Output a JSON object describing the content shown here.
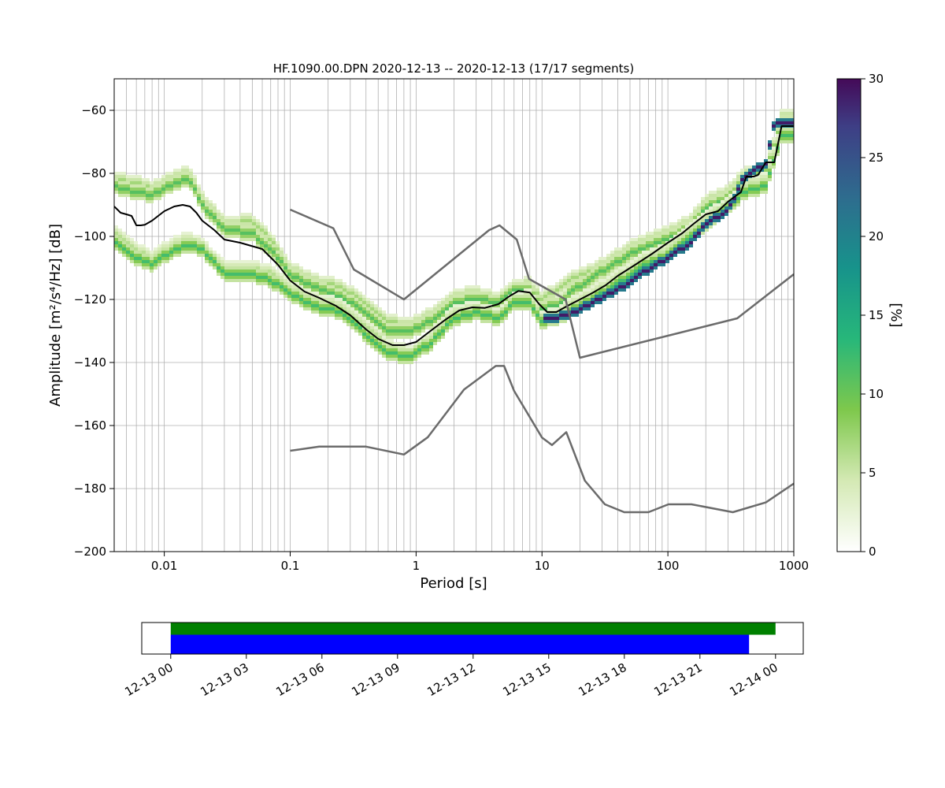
{
  "chart_data": [
    {
      "type": "heatmap",
      "title": "HF.1090.00.DPN   2020-12-13 -- 2020-12-13  (17/17 segments)",
      "xlabel": "Period [s]",
      "ylabel": "Amplitude [m²/s⁴/Hz] [dB]",
      "x_scale": "log",
      "xlim": [
        0.004,
        1000
      ],
      "ylim": [
        -200,
        -50
      ],
      "x_ticks": [
        0.01,
        0.1,
        1,
        10,
        100,
        1000
      ],
      "x_tick_labels": [
        "0.01",
        "0.1",
        "1",
        "10",
        "100",
        "1000"
      ],
      "y_ticks": [
        -60,
        -80,
        -100,
        -120,
        -140,
        -160,
        -180,
        -200
      ],
      "y_tick_labels": [
        "−60",
        "−80",
        "−100",
        "−120",
        "−140",
        "−160",
        "−180",
        "−200"
      ],
      "grid": true,
      "colorbar": {
        "label": "[%]",
        "range": [
          0,
          30
        ],
        "ticks": [
          0,
          5,
          10,
          15,
          20,
          25,
          30
        ],
        "tick_labels": [
          "0",
          "5",
          "10",
          "15",
          "20",
          "25",
          "30"
        ],
        "colormap_stops": [
          {
            "v": 0,
            "color": "#ffffff"
          },
          {
            "v": 0.15,
            "color": "#d4e9b4"
          },
          {
            "v": 0.3,
            "color": "#7ec84c"
          },
          {
            "v": 0.45,
            "color": "#27b77a"
          },
          {
            "v": 0.6,
            "color": "#17938b"
          },
          {
            "v": 0.75,
            "color": "#2e6c8e"
          },
          {
            "v": 0.9,
            "color": "#3e3e85"
          },
          {
            "v": 1.0,
            "color": "#440a58"
          }
        ]
      },
      "heatmap_bands": [
        {
          "name": "band-upper-a",
          "periods": [
            0.004,
            0.006,
            0.008,
            0.012,
            0.016,
            0.02,
            0.03,
            0.05,
            0.07,
            0.1,
            0.15,
            0.25,
            0.4,
            0.6,
            0.9,
            1.3,
            2,
            3,
            4.5,
            6,
            8,
            10,
            13,
            18,
            25,
            40,
            60,
            100,
            150,
            200,
            300,
            400,
            600,
            800,
            1000
          ],
          "db": [
            -82,
            -83,
            -85,
            -81,
            -80,
            -88,
            -96,
            -95,
            -101,
            -110,
            -114,
            -116,
            -121,
            -127,
            -128,
            -125,
            -119,
            -118,
            -120,
            -116,
            -115,
            -120,
            -117,
            -113,
            -111,
            -106,
            -102,
            -99,
            -95,
            -89,
            -86,
            -80,
            -79,
            -62,
            -62
          ],
          "pct": 7
        },
        {
          "name": "band-upper-b",
          "periods": [
            0.004,
            0.006,
            0.008,
            0.012,
            0.016,
            0.02,
            0.03,
            0.05,
            0.07,
            0.1,
            0.15,
            0.25,
            0.4,
            0.6,
            0.9,
            1.3,
            2,
            3,
            4.5,
            6,
            8,
            10,
            13,
            18,
            25,
            40,
            60,
            100,
            150,
            200,
            300,
            400,
            600,
            800,
            1000
          ],
          "db": [
            -84,
            -86,
            -87,
            -83,
            -82,
            -90,
            -98,
            -99,
            -104,
            -112,
            -116,
            -119,
            -124,
            -130,
            -130,
            -127,
            -121,
            -120,
            -121,
            -117,
            -117,
            -123,
            -122,
            -117,
            -113,
            -108,
            -104,
            -101,
            -97,
            -91,
            -88,
            -82,
            -80,
            -64,
            -64
          ],
          "pct": 11
        },
        {
          "name": "band-lower-a",
          "periods": [
            0.004,
            0.006,
            0.008,
            0.012,
            0.016,
            0.02,
            0.03,
            0.05,
            0.07,
            0.1,
            0.15,
            0.25,
            0.4,
            0.6,
            0.9,
            1.3,
            2,
            3,
            4.5,
            6,
            8,
            10,
            13,
            18,
            25,
            40,
            60,
            100,
            150,
            200,
            300,
            400,
            600,
            800,
            1000
          ],
          "db": [
            -98,
            -104,
            -107,
            -102,
            -101,
            -103,
            -110,
            -110,
            -111,
            -116,
            -120,
            -122,
            -128,
            -135,
            -137,
            -132,
            -124,
            -123,
            -125,
            -120,
            -119,
            -126,
            -125,
            -121,
            -118,
            -113,
            -108,
            -104,
            -98,
            -94,
            -90,
            -84,
            -82,
            -66,
            -66
          ],
          "pct": 6
        },
        {
          "name": "band-lower-b",
          "periods": [
            0.004,
            0.006,
            0.008,
            0.012,
            0.016,
            0.02,
            0.03,
            0.05,
            0.07,
            0.1,
            0.15,
            0.25,
            0.4,
            0.6,
            0.9,
            1.3,
            2,
            3,
            4.5,
            6,
            8,
            10,
            13,
            18,
            25,
            40,
            60,
            100,
            150,
            200,
            300,
            400,
            600,
            800,
            1000
          ],
          "db": [
            -101,
            -107,
            -109,
            -104,
            -103,
            -104,
            -112,
            -112,
            -114,
            -118,
            -122,
            -124,
            -131,
            -137,
            -138,
            -134,
            -126,
            -124,
            -126,
            -121,
            -121,
            -127,
            -126,
            -123,
            -120,
            -115,
            -110,
            -106,
            -100,
            -96,
            -91,
            -86,
            -84,
            -68,
            -68
          ],
          "pct": 12
        },
        {
          "name": "band-dark",
          "periods": [
            10,
            13,
            18,
            25,
            40,
            60,
            100,
            150,
            200,
            300,
            400,
            600,
            700,
            1000
          ],
          "db": [
            -126,
            -126,
            -124,
            -121,
            -117,
            -112,
            -107,
            -102,
            -96,
            -92,
            -81,
            -77,
            -64,
            -64
          ],
          "pct": 29
        }
      ],
      "series": [
        {
          "name": "mean",
          "color": "#000000",
          "x": [
            0.004,
            0.0045,
            0.005,
            0.0055,
            0.006,
            0.0065,
            0.007,
            0.008,
            0.01,
            0.012,
            0.014,
            0.016,
            0.018,
            0.02,
            0.025,
            0.03,
            0.04,
            0.06,
            0.08,
            0.1,
            0.13,
            0.17,
            0.23,
            0.3,
            0.4,
            0.5,
            0.65,
            0.8,
            1.0,
            1.3,
            1.7,
            2.2,
            2.8,
            3.5,
            4.5,
            5.5,
            6.5,
            8,
            9.5,
            11,
            13,
            16,
            20,
            25,
            32,
            40,
            55,
            75,
            100,
            130,
            160,
            200,
            250,
            300,
            350,
            380,
            420,
            480,
            520,
            600,
            650,
            700,
            800,
            1000
          ],
          "y": [
            -90.5,
            -92.5,
            -93,
            -93.5,
            -96.5,
            -96.5,
            -96.3,
            -95,
            -92,
            -90.5,
            -90,
            -90.5,
            -92.5,
            -95,
            -98,
            -101,
            -102,
            -104,
            -109,
            -114,
            -117.5,
            -119.5,
            -122,
            -125,
            -129.5,
            -132.5,
            -134.5,
            -134.5,
            -133.5,
            -130,
            -126.5,
            -123.5,
            -122.5,
            -122.7,
            -121.5,
            -119,
            -117.3,
            -117.8,
            -121.5,
            -124,
            -124,
            -122,
            -120,
            -118,
            -115.5,
            -112.5,
            -109,
            -105.5,
            -102,
            -99,
            -96,
            -93,
            -92,
            -89,
            -87,
            -86,
            -81,
            -81,
            -80.5,
            -76.5,
            -76.5,
            -76.5,
            -65,
            -65
          ]
        },
        {
          "name": "noise-model-high",
          "color": "#6b6b6b",
          "x": [
            0.1,
            0.22,
            0.32,
            0.8,
            3.8,
            4.6,
            6.3,
            7.9,
            15.4,
            20,
            354.8,
            1000
          ],
          "y": [
            -91.5,
            -97.4,
            -110.5,
            -120,
            -98,
            -96.5,
            -101,
            -113.5,
            -120,
            -138.5,
            -126,
            -112
          ]
        },
        {
          "name": "noise-model-low",
          "color": "#6b6b6b",
          "x": [
            0.1,
            0.17,
            0.4,
            0.8,
            1.24,
            2.4,
            4.3,
            5,
            6,
            10,
            12,
            15.6,
            21.9,
            31.6,
            45,
            70,
            101,
            154,
            328,
            600,
            1000
          ],
          "y": [
            -168,
            -166.7,
            -166.7,
            -169.2,
            -163.7,
            -148.6,
            -141.1,
            -141.1,
            -149,
            -163.8,
            -166.2,
            -162.1,
            -177.5,
            -185,
            -187.5,
            -187.5,
            -185,
            -185,
            -187.5,
            -184.4,
            -178.4
          ]
        }
      ]
    },
    {
      "type": "bar",
      "title": "",
      "x_tick_labels": [
        "12-13 00",
        "12-13 03",
        "12-13 06",
        "12-13 09",
        "12-13 12",
        "12-13 15",
        "12-13 18",
        "12-13 21",
        "12-14 00"
      ],
      "xlim_hours": [
        -1.15,
        25.1
      ],
      "series": [
        {
          "color": "#008000",
          "start_hour": 0,
          "end_hour": 24
        },
        {
          "color": "#0000ff",
          "start_hour": 0,
          "end_hour": 22.95
        }
      ]
    }
  ]
}
